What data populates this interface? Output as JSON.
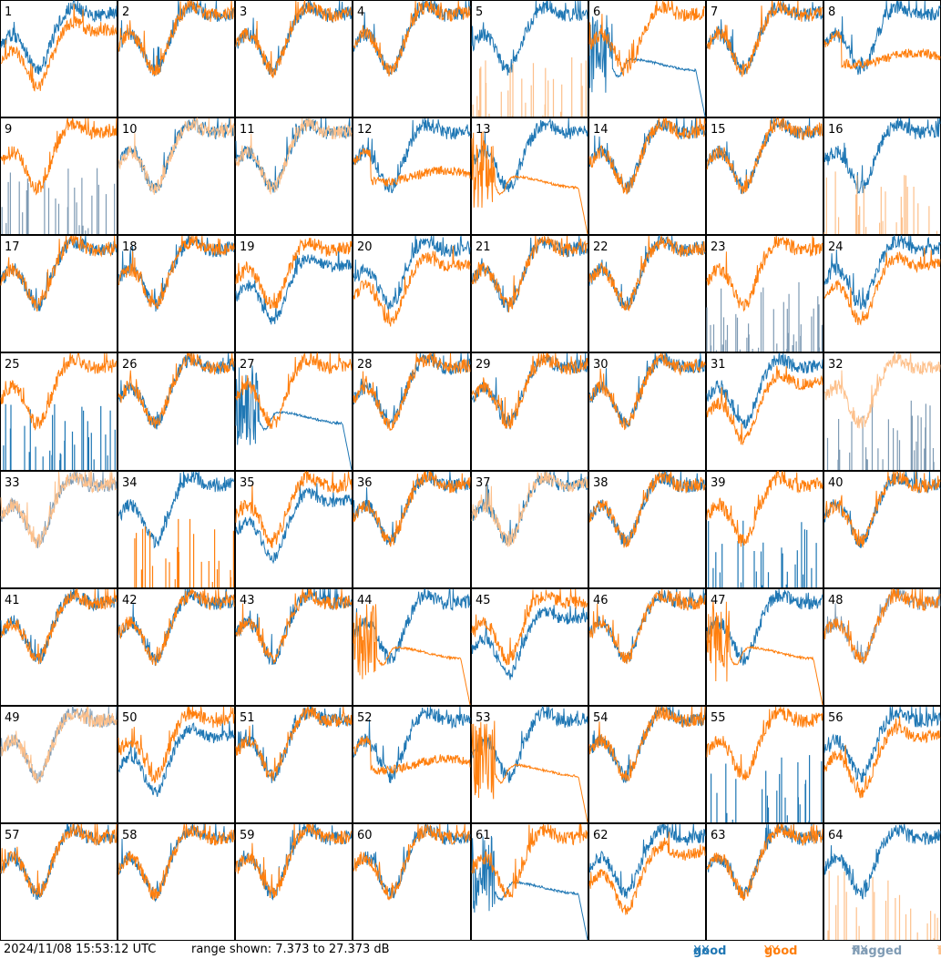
{
  "footer": {
    "timestamp": "2024/11/08 15:53:12 UTC",
    "range_label": "range shown: 7.373 to 27.373 dB",
    "legend": [
      {
        "word": "good",
        "pol": "XX",
        "color": "#1f77b4"
      },
      {
        "word": "good",
        "pol": "YY",
        "color": "#ff7f0e"
      },
      {
        "word": "flagged",
        "pol": "XX",
        "color": "#7f9bb4"
      },
      {
        "word": "flagged",
        "pol": "YY",
        "color": "#fdc08b"
      }
    ]
  },
  "colors": {
    "good_xx": "#1f77b4",
    "good_yy": "#ff7f0e",
    "flagged_xx": "#7f9bb4",
    "flagged_yy": "#fdc08b"
  },
  "chart_data": {
    "type": "line",
    "layout": "8x8 small multiples",
    "ylim_db": [
      7.373,
      27.373
    ],
    "panels": [
      {
        "label": "1",
        "xx": "normal",
        "yy": "low",
        "xx_flag": false,
        "yy_flag": false
      },
      {
        "label": "2",
        "xx": "normal",
        "yy": "normal",
        "xx_flag": false,
        "yy_flag": false
      },
      {
        "label": "3",
        "xx": "normal",
        "yy": "normal",
        "xx_flag": false,
        "yy_flag": false
      },
      {
        "label": "4",
        "xx": "normal",
        "yy": "normal",
        "xx_flag": false,
        "yy_flag": false
      },
      {
        "label": "5",
        "xx": "normal",
        "yy": "spikes",
        "xx_flag": false,
        "yy_flag": true
      },
      {
        "label": "6",
        "xx": "decay",
        "yy": "normal",
        "xx_flag": false,
        "yy_flag": false
      },
      {
        "label": "7",
        "xx": "normal",
        "yy": "normal",
        "xx_flag": false,
        "yy_flag": false
      },
      {
        "label": "8",
        "xx": "normal",
        "yy": "flat",
        "xx_flag": false,
        "yy_flag": false
      },
      {
        "label": "9",
        "xx": "spikes",
        "yy": "normal",
        "xx_flag": true,
        "yy_flag": false
      },
      {
        "label": "10",
        "xx": "normal",
        "yy": "normal",
        "xx_flag": false,
        "yy_flag": true
      },
      {
        "label": "11",
        "xx": "normal",
        "yy": "normal",
        "xx_flag": false,
        "yy_flag": true
      },
      {
        "label": "12",
        "xx": "normal",
        "yy": "flat",
        "xx_flag": false,
        "yy_flag": false
      },
      {
        "label": "13",
        "xx": "normal",
        "yy": "decay",
        "xx_flag": false,
        "yy_flag": false
      },
      {
        "label": "14",
        "xx": "normal",
        "yy": "normal",
        "xx_flag": false,
        "yy_flag": false
      },
      {
        "label": "15",
        "xx": "normal",
        "yy": "normal",
        "xx_flag": false,
        "yy_flag": false
      },
      {
        "label": "16",
        "xx": "normal",
        "yy": "spikes",
        "xx_flag": false,
        "yy_flag": true
      },
      {
        "label": "17",
        "xx": "normal",
        "yy": "normal",
        "xx_flag": false,
        "yy_flag": false
      },
      {
        "label": "18",
        "xx": "normal",
        "yy": "normal",
        "xx_flag": false,
        "yy_flag": false
      },
      {
        "label": "19",
        "xx": "low",
        "yy": "normal",
        "xx_flag": false,
        "yy_flag": false
      },
      {
        "label": "20",
        "xx": "normal",
        "yy": "low",
        "xx_flag": false,
        "yy_flag": false
      },
      {
        "label": "21",
        "xx": "normal",
        "yy": "normal",
        "xx_flag": false,
        "yy_flag": false
      },
      {
        "label": "22",
        "xx": "normal",
        "yy": "normal",
        "xx_flag": false,
        "yy_flag": false
      },
      {
        "label": "23",
        "xx": "spikes",
        "yy": "normal",
        "xx_flag": true,
        "yy_flag": false
      },
      {
        "label": "24",
        "xx": "normal",
        "yy": "low",
        "xx_flag": false,
        "yy_flag": false
      },
      {
        "label": "25",
        "xx": "spikes",
        "yy": "normal",
        "xx_flag": false,
        "yy_flag": false
      },
      {
        "label": "26",
        "xx": "normal",
        "yy": "normal",
        "xx_flag": false,
        "yy_flag": false
      },
      {
        "label": "27",
        "xx": "decay",
        "yy": "normal",
        "xx_flag": false,
        "yy_flag": false
      },
      {
        "label": "28",
        "xx": "normal",
        "yy": "normal",
        "xx_flag": false,
        "yy_flag": false
      },
      {
        "label": "29",
        "xx": "normal",
        "yy": "normal",
        "xx_flag": false,
        "yy_flag": false
      },
      {
        "label": "30",
        "xx": "normal",
        "yy": "normal",
        "xx_flag": false,
        "yy_flag": false
      },
      {
        "label": "31",
        "xx": "normal",
        "yy": "low",
        "xx_flag": false,
        "yy_flag": false
      },
      {
        "label": "32",
        "xx": "spikes",
        "yy": "normal",
        "xx_flag": true,
        "yy_flag": true
      },
      {
        "label": "33",
        "xx": "normal",
        "yy": "normal",
        "xx_flag": true,
        "yy_flag": true
      },
      {
        "label": "34",
        "xx": "normal",
        "yy": "spikes",
        "xx_flag": false,
        "yy_flag": false
      },
      {
        "label": "35",
        "xx": "low",
        "yy": "normal",
        "xx_flag": false,
        "yy_flag": false
      },
      {
        "label": "36",
        "xx": "normal",
        "yy": "normal",
        "xx_flag": false,
        "yy_flag": false
      },
      {
        "label": "37",
        "xx": "normal",
        "yy": "normal",
        "xx_flag": false,
        "yy_flag": true
      },
      {
        "label": "38",
        "xx": "normal",
        "yy": "normal",
        "xx_flag": false,
        "yy_flag": false
      },
      {
        "label": "39",
        "xx": "spikes",
        "yy": "normal",
        "xx_flag": false,
        "yy_flag": false
      },
      {
        "label": "40",
        "xx": "normal",
        "yy": "normal",
        "xx_flag": false,
        "yy_flag": false
      },
      {
        "label": "41",
        "xx": "normal",
        "yy": "normal",
        "xx_flag": false,
        "yy_flag": false
      },
      {
        "label": "42",
        "xx": "normal",
        "yy": "normal",
        "xx_flag": false,
        "yy_flag": false
      },
      {
        "label": "43",
        "xx": "normal",
        "yy": "normal",
        "xx_flag": false,
        "yy_flag": false
      },
      {
        "label": "44",
        "xx": "normal",
        "yy": "decay",
        "xx_flag": false,
        "yy_flag": false
      },
      {
        "label": "45",
        "xx": "low",
        "yy": "normal",
        "xx_flag": false,
        "yy_flag": false
      },
      {
        "label": "46",
        "xx": "normal",
        "yy": "normal",
        "xx_flag": false,
        "yy_flag": false
      },
      {
        "label": "47",
        "xx": "normal",
        "yy": "decay",
        "xx_flag": false,
        "yy_flag": false
      },
      {
        "label": "48",
        "xx": "normal",
        "yy": "normal",
        "xx_flag": true,
        "yy_flag": false
      },
      {
        "label": "49",
        "xx": "normal",
        "yy": "normal",
        "xx_flag": true,
        "yy_flag": true
      },
      {
        "label": "50",
        "xx": "low",
        "yy": "normal",
        "xx_flag": false,
        "yy_flag": false
      },
      {
        "label": "51",
        "xx": "normal",
        "yy": "normal",
        "xx_flag": false,
        "yy_flag": false
      },
      {
        "label": "52",
        "xx": "normal",
        "yy": "flat",
        "xx_flag": false,
        "yy_flag": false
      },
      {
        "label": "53",
        "xx": "normal",
        "yy": "decay",
        "xx_flag": false,
        "yy_flag": false
      },
      {
        "label": "54",
        "xx": "normal",
        "yy": "normal",
        "xx_flag": false,
        "yy_flag": false
      },
      {
        "label": "55",
        "xx": "spikes",
        "yy": "normal",
        "xx_flag": false,
        "yy_flag": false
      },
      {
        "label": "56",
        "xx": "normal",
        "yy": "low",
        "xx_flag": false,
        "yy_flag": false
      },
      {
        "label": "57",
        "xx": "normal",
        "yy": "normal",
        "xx_flag": false,
        "yy_flag": false
      },
      {
        "label": "58",
        "xx": "normal",
        "yy": "normal",
        "xx_flag": false,
        "yy_flag": false
      },
      {
        "label": "59",
        "xx": "normal",
        "yy": "normal",
        "xx_flag": false,
        "yy_flag": false
      },
      {
        "label": "60",
        "xx": "normal",
        "yy": "normal",
        "xx_flag": false,
        "yy_flag": false
      },
      {
        "label": "61",
        "xx": "decay",
        "yy": "normal",
        "xx_flag": false,
        "yy_flag": false
      },
      {
        "label": "62",
        "xx": "normal",
        "yy": "low",
        "xx_flag": false,
        "yy_flag": false
      },
      {
        "label": "63",
        "xx": "normal",
        "yy": "normal",
        "xx_flag": false,
        "yy_flag": false
      },
      {
        "label": "64",
        "xx": "normal",
        "yy": "spikes",
        "xx_flag": false,
        "yy_flag": true
      }
    ]
  }
}
